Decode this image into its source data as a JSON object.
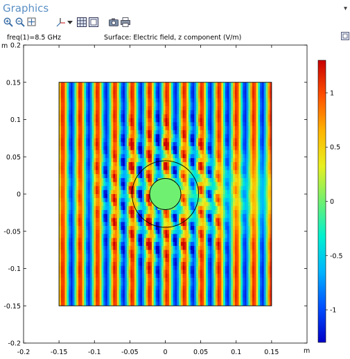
{
  "window": {
    "title": "Graphics",
    "menu_glyph": "▾"
  },
  "toolbar": {
    "buttons": [
      {
        "name": "zoom-in-icon"
      },
      {
        "name": "zoom-out-icon"
      },
      {
        "name": "zoom-extents-icon"
      },
      {
        "name": "view-axis-icon"
      },
      {
        "name": "dropdown-arrow-icon"
      },
      {
        "name": "grid-toggle-icon"
      },
      {
        "name": "frame-toggle-icon"
      },
      {
        "name": "camera-icon"
      },
      {
        "name": "print-icon"
      }
    ]
  },
  "plot": {
    "frequency_label": "freq(1)=8.5 GHz",
    "title": "Surface: Electric field, z component (V/m)",
    "y_unit": "m",
    "x_unit": "m"
  },
  "chart_data": {
    "type": "heatmap",
    "title": "Surface: Electric field, z component (V/m)",
    "subtitle": "freq(1)=8.5 GHz",
    "xlabel": "m",
    "ylabel": "m",
    "xlim": [
      -0.2,
      0.2
    ],
    "ylim": [
      -0.2,
      0.2
    ],
    "x_ticks": [
      "-0.2",
      "-0.15",
      "-0.1",
      "-0.05",
      "0",
      "0.05",
      "0.1",
      "0.15"
    ],
    "y_ticks": [
      "0.2",
      "0.15",
      "0.1",
      "0.05",
      "0",
      "-0.05",
      "-0.1",
      "-0.15",
      "-0.2"
    ],
    "domain": {
      "x": [
        -0.15,
        0.15
      ],
      "y": [
        -0.15,
        0.15
      ]
    },
    "inner_circle": {
      "center": [
        0,
        0
      ],
      "radius": 0.022
    },
    "outer_circle": {
      "center": [
        0,
        0
      ],
      "radius": 0.047
    },
    "colorbar": {
      "range": [
        -1.3,
        1.3
      ],
      "ticks": [
        "1",
        "0.5",
        "0",
        "-0.5",
        "-1"
      ],
      "tick_values": [
        1,
        0.5,
        0,
        -0.5,
        -1
      ],
      "colormap": "rainbow"
    }
  }
}
